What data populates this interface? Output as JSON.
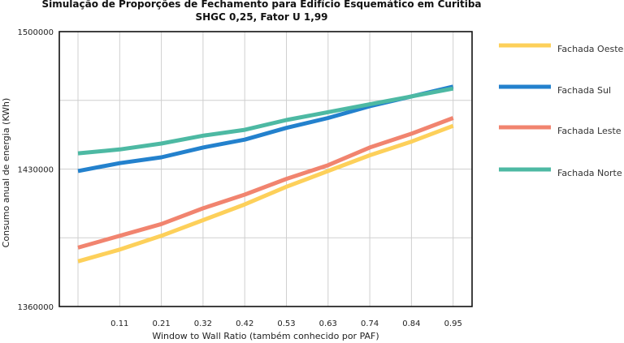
{
  "chart_data": {
    "type": "line",
    "title": "Simulação de Proporções de Fechamento para Edifício Esquemático em Curitiba",
    "subtitle": "SHGC 0,25, Fator U 1,99",
    "xlabel": "Window to Wall Ratio (também conhecido por PAF)",
    "ylabel": "Consumo anual de energia (KWh)",
    "categories": [
      "",
      "0.11",
      "0.21",
      "0.32",
      "0.42",
      "0.53",
      "0.63",
      "0.74",
      "0.84",
      "0.95"
    ],
    "x_tick_labels": [
      "0.11",
      "0.21",
      "0.32",
      "0.42",
      "0.53",
      "0.63",
      "0.74",
      "0.84",
      "0.95"
    ],
    "y_tick_labels": [
      "1500000",
      "1430000",
      "1360000"
    ],
    "ylim": [
      1360000,
      1500000
    ],
    "y_gridlines": [
      1360000,
      1395000,
      1430000,
      1465000,
      1500000
    ],
    "legend_position": "right",
    "series": [
      {
        "name": "Fachada Oeste",
        "color": "#FDD05A",
        "values": [
          1383000,
          1389000,
          1396000,
          1404000,
          1412000,
          1421000,
          1429000,
          1437000,
          1444000,
          1452000
        ]
      },
      {
        "name": "Fachada Sul",
        "color": "#2381CD",
        "values": [
          1429000,
          1433000,
          1436000,
          1441000,
          1445000,
          1451000,
          1456000,
          1462000,
          1467000,
          1472000
        ]
      },
      {
        "name": "Fachada Leste",
        "color": "#F1846F",
        "values": [
          1390000,
          1396000,
          1402000,
          1410000,
          1417000,
          1425000,
          1432000,
          1441000,
          1448000,
          1456000
        ]
      },
      {
        "name": "Fachada Norte",
        "color": "#4DB9A3",
        "values": [
          1438000,
          1440000,
          1443000,
          1447000,
          1450000,
          1455000,
          1459000,
          1463000,
          1467000,
          1471000
        ]
      }
    ]
  }
}
